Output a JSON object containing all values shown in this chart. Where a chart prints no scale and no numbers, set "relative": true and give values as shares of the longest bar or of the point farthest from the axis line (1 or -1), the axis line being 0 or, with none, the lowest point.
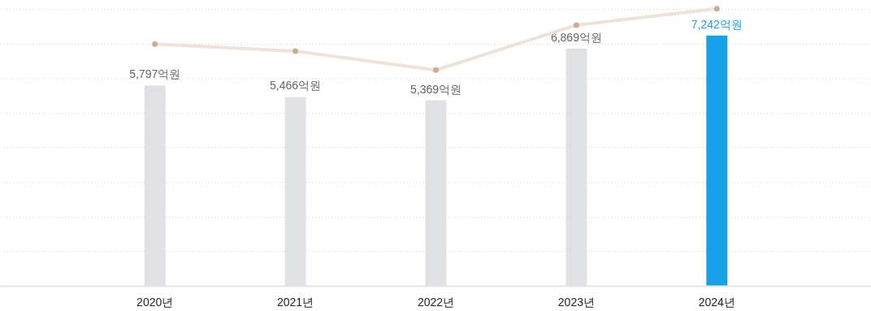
{
  "chart_data": [
    {
      "type": "bar",
      "categories": [
        "2020년",
        "2021년",
        "2022년",
        "2023년",
        "2024년"
      ],
      "values": [
        5797,
        5466,
        5369,
        6869,
        7242
      ],
      "colors": [
        "#e0e1e5",
        "#e0e1e5",
        "#e0e1e5",
        "#e0e1e5",
        "#16a1e9"
      ],
      "value_labels": [
        "5,797억원",
        "5,466억원",
        "5,369억원",
        "6,869억원",
        "7,242억원"
      ],
      "grid": "y",
      "tick_labels": "x"
    },
    {
      "type": "line",
      "relative": true,
      "categories": [
        null,
        null,
        null,
        null,
        null
      ],
      "series": [
        {
          "color": "#f0e2d8",
          "values": [
            0.873,
            0.847,
            0.779,
            0.941,
            1
          ]
        }
      ],
      "marker": "circle",
      "tick_labels": false
    }
  ]
}
